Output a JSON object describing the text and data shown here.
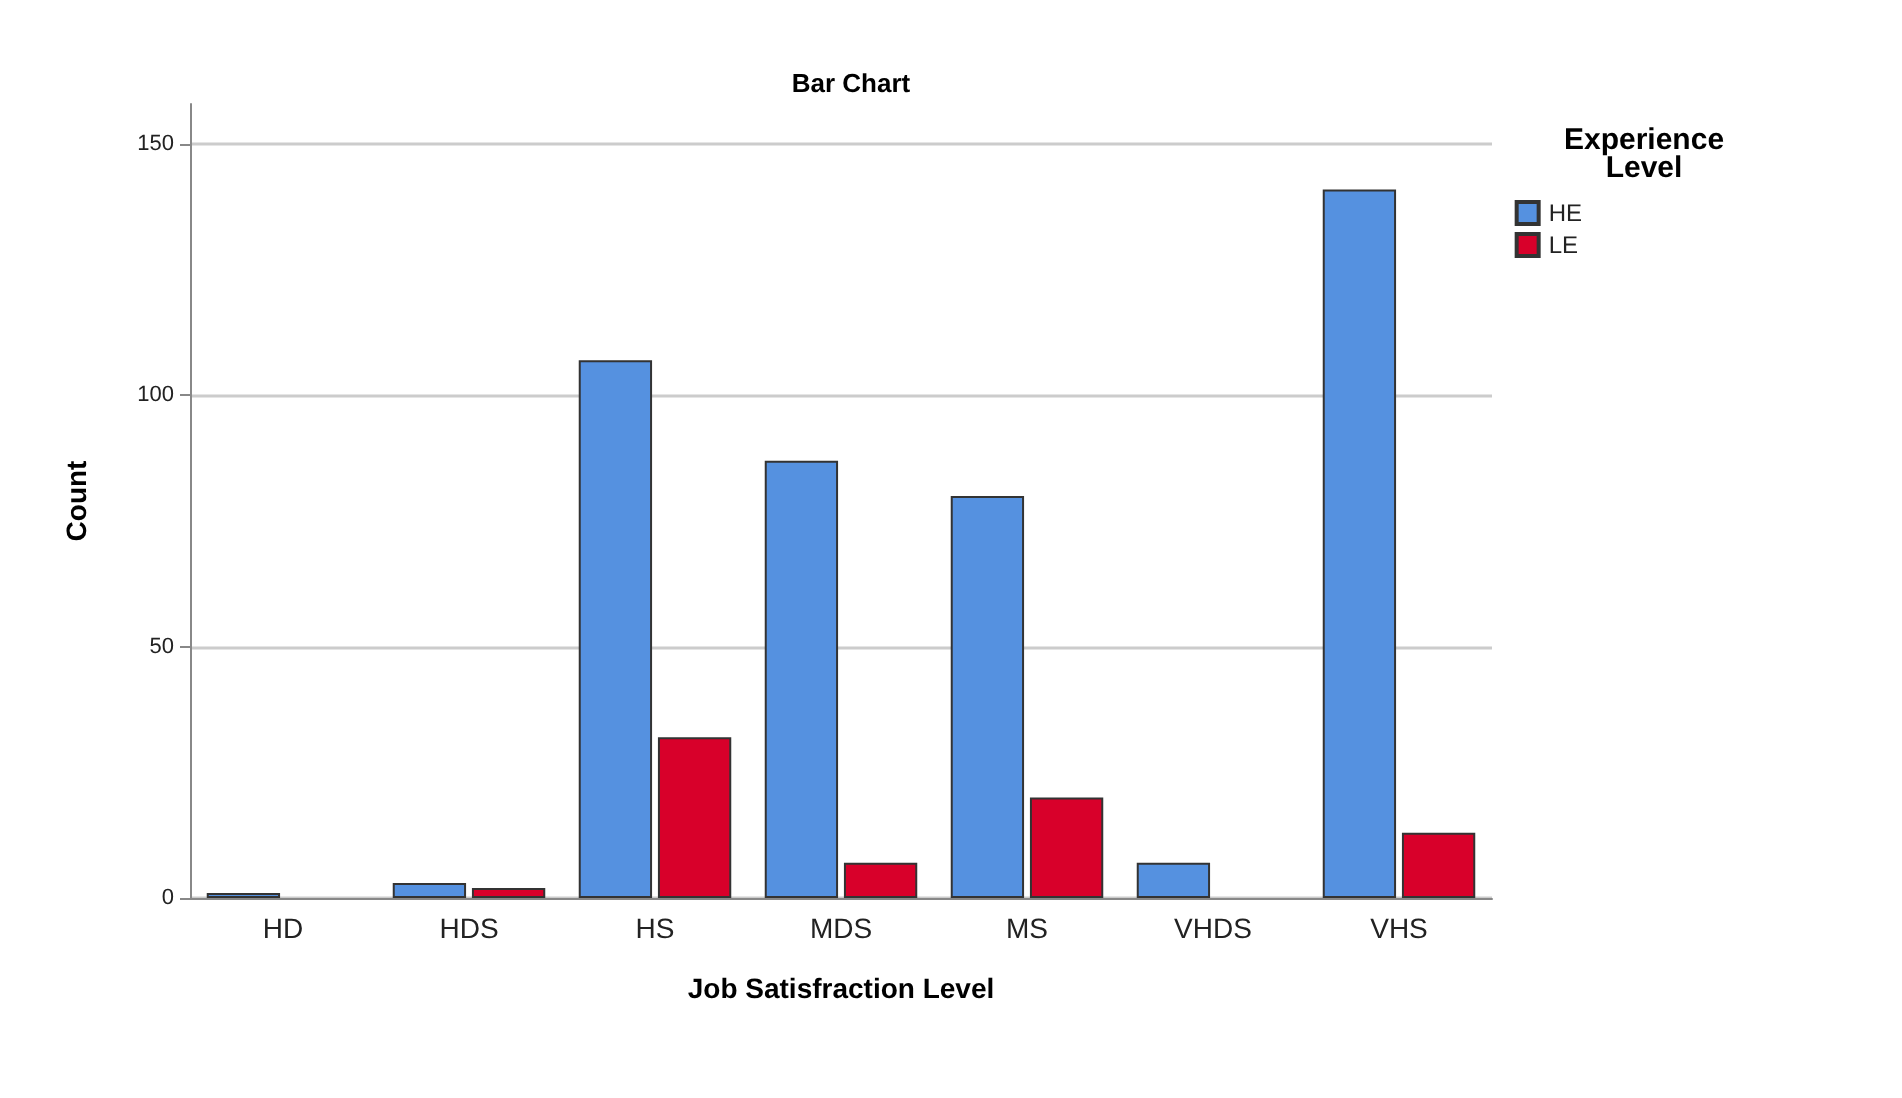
{
  "chart_data": {
    "type": "bar",
    "title": "Bar Chart",
    "xlabel": "Job Satisfraction Level",
    "ylabel": "Count",
    "legend_title": "Experience\nLevel",
    "categories": [
      "HD",
      "HDS",
      "HS",
      "MDS",
      "MS",
      "VHDS",
      "VHS"
    ],
    "series": [
      {
        "name": "HE",
        "color": "#5591e0",
        "values": [
          1,
          3,
          107,
          87,
          80,
          7,
          141
        ]
      },
      {
        "name": "LE",
        "color": "#d8002a",
        "values": [
          null,
          2,
          32,
          7,
          20,
          null,
          13
        ]
      }
    ],
    "ylim": [
      0,
      158
    ],
    "yticks": [
      0,
      50,
      100,
      150
    ],
    "grid": "y",
    "legend": "top right"
  }
}
